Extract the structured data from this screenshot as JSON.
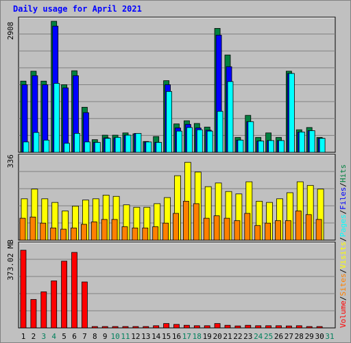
{
  "title": "Daily usage for April 2021",
  "colors": {
    "hits": "#008040",
    "files": "#0000ff",
    "pages": "#00ffff",
    "visits": "#ffff00",
    "sites": "#ff8000",
    "volume": "#ff0000",
    "weekend_day": "#00805c",
    "weekday": "#000000",
    "background": "#c0c0c0",
    "title": "#0000ff"
  },
  "legend": {
    "volume": "Volume",
    "sites": "Sites",
    "visits": "Visits",
    "pages": "Pages",
    "files": "Files",
    "hits": "Hits",
    "sep": "/"
  },
  "chart_data": [
    {
      "type": "bar",
      "name": "hits-files-pages",
      "max_label": "2908",
      "ylim": [
        0,
        2908
      ],
      "grid": true,
      "categories": [
        "1",
        "2",
        "3",
        "4",
        "5",
        "6",
        "7",
        "8",
        "9",
        "10",
        "11",
        "12",
        "13",
        "14",
        "15",
        "16",
        "17",
        "18",
        "19",
        "20",
        "21",
        "22",
        "23",
        "24",
        "25",
        "26",
        "27",
        "28",
        "29",
        "30",
        "31"
      ],
      "weekend_days": [
        "3",
        "4",
        "10",
        "11",
        "17",
        "18",
        "24",
        "25",
        "31"
      ],
      "series": [
        {
          "name": "Hits",
          "values": [
            1580,
            1800,
            1580,
            2908,
            1500,
            1810,
            1000,
            280,
            380,
            380,
            430,
            410,
            240,
            350,
            1590,
            630,
            700,
            640,
            560,
            2750,
            2160,
            330,
            820,
            330,
            430,
            330,
            1800,
            500,
            550,
            330,
            0
          ]
        },
        {
          "name": "Files",
          "values": [
            1500,
            1700,
            1500,
            2800,
            1430,
            1700,
            880,
            220,
            320,
            320,
            380,
            420,
            230,
            220,
            1500,
            540,
            620,
            540,
            490,
            2600,
            1900,
            270,
            680,
            250,
            260,
            260,
            1750,
            450,
            480,
            310,
            0
          ]
        },
        {
          "name": "Pages",
          "values": [
            230,
            440,
            270,
            1530,
            200,
            420,
            230,
            220,
            310,
            330,
            380,
            420,
            230,
            220,
            1350,
            470,
            550,
            500,
            470,
            910,
            1570,
            270,
            680,
            250,
            260,
            260,
            1750,
            450,
            480,
            310,
            0
          ]
        }
      ]
    },
    {
      "type": "bar",
      "name": "visits-sites",
      "max_label": "336",
      "ylim": [
        0,
        336
      ],
      "grid": true,
      "categories": [
        "1",
        "2",
        "3",
        "4",
        "5",
        "6",
        "7",
        "8",
        "9",
        "10",
        "11",
        "12",
        "13",
        "14",
        "15",
        "16",
        "17",
        "18",
        "19",
        "20",
        "21",
        "22",
        "23",
        "24",
        "25",
        "26",
        "27",
        "28",
        "29",
        "30",
        "31"
      ],
      "series": [
        {
          "name": "Visits",
          "values": [
            170,
            210,
            170,
            155,
            120,
            140,
            165,
            170,
            185,
            180,
            145,
            135,
            135,
            150,
            175,
            265,
            320,
            280,
            220,
            235,
            200,
            190,
            240,
            160,
            155,
            170,
            195,
            240,
            225,
            210,
            0
          ]
        },
        {
          "name": "Sites",
          "values": [
            90,
            95,
            70,
            50,
            45,
            50,
            65,
            75,
            85,
            85,
            55,
            50,
            50,
            55,
            70,
            110,
            160,
            150,
            90,
            100,
            90,
            80,
            110,
            60,
            70,
            80,
            80,
            120,
            105,
            85,
            0
          ]
        }
      ]
    },
    {
      "type": "bar",
      "name": "volume",
      "max_label": "373.02 MB",
      "ylim": [
        0,
        373.02
      ],
      "grid": true,
      "categories": [
        "1",
        "2",
        "3",
        "4",
        "5",
        "6",
        "7",
        "8",
        "9",
        "10",
        "11",
        "12",
        "13",
        "14",
        "15",
        "16",
        "17",
        "18",
        "19",
        "20",
        "21",
        "22",
        "23",
        "24",
        "25",
        "26",
        "27",
        "28",
        "29",
        "30",
        "31"
      ],
      "series": [
        {
          "name": "Volume",
          "values": [
            355,
            130,
            165,
            215,
            305,
            345,
            210,
            3,
            6,
            6,
            3,
            3,
            6,
            10,
            20,
            16,
            12,
            10,
            10,
            20,
            12,
            9,
            12,
            10,
            10,
            10,
            9,
            10,
            6,
            6,
            0
          ]
        }
      ]
    }
  ]
}
